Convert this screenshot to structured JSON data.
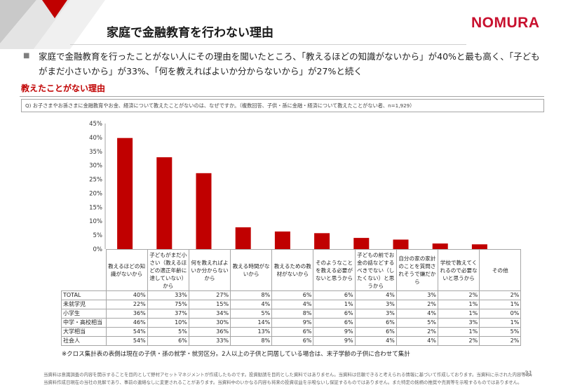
{
  "header": {
    "title": "家庭で金融教育を行わない理由",
    "logo_text": "NOMURA",
    "logo_color": "#c8102e"
  },
  "summary": {
    "bullet": "■",
    "lines": [
      "家庭で金融教育を行ったことがない人にその理由を聞いたところ、「教えるほどの知識がないから」が40%と最も高く、「子ども",
      "がまだ小さいから」が33%、「何を教えればよいか分からないから」が27%と続く"
    ]
  },
  "section": {
    "title": "教えたことがない理由",
    "question": "Q) お子さまやお孫さまに金融教育やお金、経済について教えたことがないのは、なぜですか。（複数回答、子供・孫に金融・経済について教えたことがない者、n=1,929）"
  },
  "chart_data": {
    "type": "bar",
    "categories": [
      "教えるほどの知識がないから",
      "子どもがまだ小さい（教えるほどの適正年齢に達していない）から",
      "何を教えればよいか分からないから",
      "教える時間がないから",
      "教えるための教材がないから",
      "そのようなことを教える必要がないと思うから",
      "子どもの前でお金の話などするべきでない（したくない）と思うから",
      "自分の家の家計のことを質問されそうで嫌だから",
      "学校で教えてくれるので必要ないと思うから",
      "その他"
    ],
    "values": [
      39.8,
      32.9,
      27.2,
      7.8,
      6.3,
      5.7,
      4.0,
      3.4,
      2.0,
      1.7
    ],
    "ylim": [
      0,
      45
    ],
    "yticks": [
      0,
      5,
      10,
      15,
      20,
      25,
      30,
      35,
      40,
      45
    ],
    "ytick_labels": [
      "0%",
      "5%",
      "10%",
      "15%",
      "20%",
      "25%",
      "30%",
      "35%",
      "40%",
      "45%"
    ],
    "grid": false,
    "legend": "none",
    "color": "#c00000"
  },
  "table": {
    "rows": [
      {
        "label": "TOTAL",
        "cells": [
          "40%",
          "33%",
          "27%",
          "8%",
          "6%",
          "6%",
          "4%",
          "3%",
          "2%",
          "2%"
        ]
      },
      {
        "label": "未就学児",
        "cells": [
          "22%",
          "75%",
          "15%",
          "4%",
          "4%",
          "1%",
          "3%",
          "2%",
          "1%",
          "1%"
        ]
      },
      {
        "label": "小学生",
        "cells": [
          "36%",
          "37%",
          "34%",
          "5%",
          "8%",
          "6%",
          "3%",
          "4%",
          "1%",
          "0%"
        ]
      },
      {
        "label": "中学・高校相当",
        "cells": [
          "46%",
          "10%",
          "30%",
          "14%",
          "9%",
          "6%",
          "6%",
          "5%",
          "3%",
          "1%"
        ]
      },
      {
        "label": "大学相当",
        "cells": [
          "54%",
          "5%",
          "36%",
          "13%",
          "6%",
          "9%",
          "6%",
          "2%",
          "1%",
          "5%"
        ]
      },
      {
        "label": "社会人",
        "cells": [
          "54%",
          "6%",
          "33%",
          "8%",
          "6%",
          "9%",
          "4%",
          "4%",
          "2%",
          "2%"
        ]
      }
    ]
  },
  "footnote": "※クロス集計表の表側は現在の子供・孫の就学・就労区分。2人以上の子供と同居している場合は、末子学齢の子供に合わせて集計",
  "disclaimer": [
    "当資料は意識調査の内容を開示することを目的として野村アセットマネジメントが作成したものです。投資勧誘を目的とした資料ではありません。当資料は信頼できると考えられる情報に基づいて作成しております。当資料に示された内容等は、",
    "当資料作成日現在の当社の見解であり、事前の連絡なしに変更されることがあります。当資料中のいかなる内容も将来の投資収益を示唆ないし保証するものではありません。また特定の銘柄の推奨や売買等を示唆するものではありません。"
  ],
  "page_number": "31"
}
